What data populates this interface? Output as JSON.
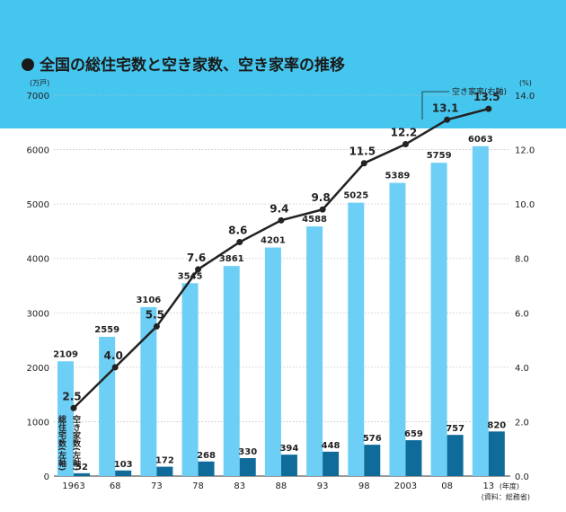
{
  "title": "全国の総住宅数と空き家数、空き家率の推移",
  "left_unit": "(万戸)",
  "right_unit": "(%)",
  "x_unit": "(年度)",
  "source": "(資料：総務省)",
  "vacancy_rate_label": "空き家率(右軸)",
  "bar1_vertical_label": "総住宅数(左軸)",
  "bar2_vertical_label": "空き家数(左軸)",
  "colors": {
    "header": "#45c6ef",
    "total_bar": "#6dcff6",
    "vacant_bar": "#0f6c9a",
    "line": "#222222"
  },
  "chart_data": {
    "type": "bar",
    "categories": [
      "1963",
      "68",
      "73",
      "78",
      "83",
      "88",
      "93",
      "98",
      "2003",
      "08",
      "13"
    ],
    "series": [
      {
        "name": "総住宅数(左軸)",
        "axis": "left",
        "kind": "bar",
        "values": [
          2109,
          2559,
          3106,
          3545,
          3861,
          4201,
          4588,
          5025,
          5389,
          5759,
          6063
        ]
      },
      {
        "name": "空き家数(左軸)",
        "axis": "left",
        "kind": "bar",
        "values": [
          52,
          103,
          172,
          268,
          330,
          394,
          448,
          576,
          659,
          757,
          820
        ]
      },
      {
        "name": "空き家率(右軸)",
        "axis": "right",
        "kind": "line",
        "values": [
          2.5,
          4.0,
          5.5,
          7.6,
          8.6,
          9.4,
          9.8,
          11.5,
          12.2,
          13.1,
          13.5
        ]
      }
    ],
    "ylim_left": [
      0,
      7000
    ],
    "ylim_right": [
      0,
      14
    ],
    "yticks_left": [
      "0",
      "1000",
      "2000",
      "3000",
      "4000",
      "5000",
      "6000",
      "7000"
    ],
    "yticks_right": [
      "0.0",
      "2.0",
      "4.0",
      "6.0",
      "8.0",
      "10.0",
      "12.0",
      "14.0"
    ],
    "grid": true
  }
}
